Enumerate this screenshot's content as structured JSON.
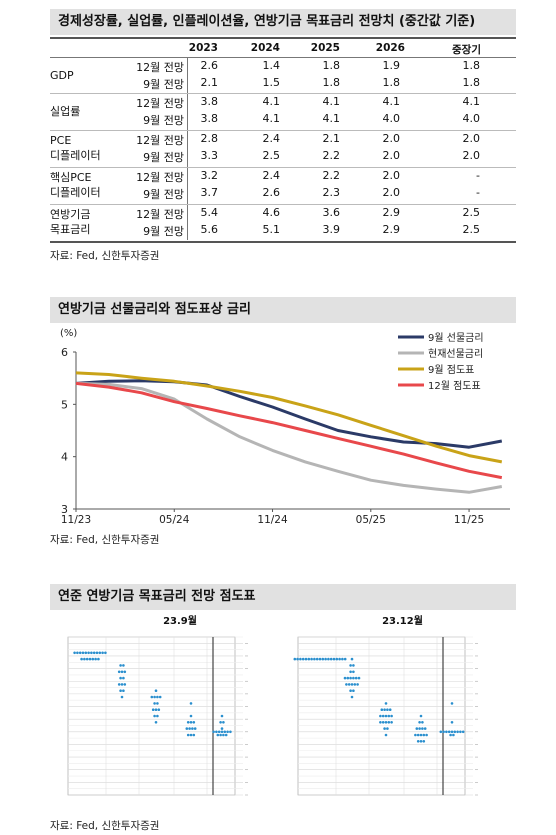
{
  "table_section": {
    "title": "경제성장률, 실업률, 인플레이션율, 연방기금 목표금리 전망치 (중간값 기준)",
    "headers": [
      "2023",
      "2024",
      "2025",
      "2026",
      "중장기"
    ],
    "groups": [
      {
        "label": [
          "GDP"
        ],
        "rows": [
          {
            "label": "12월 전망",
            "values": [
              "2.6",
              "1.4",
              "1.8",
              "1.9",
              "1.8"
            ]
          },
          {
            "label": "9월 전망",
            "values": [
              "2.1",
              "1.5",
              "1.8",
              "1.8",
              "1.8"
            ]
          }
        ]
      },
      {
        "label": [
          "실업률"
        ],
        "rows": [
          {
            "label": "12월 전망",
            "values": [
              "3.8",
              "4.1",
              "4.1",
              "4.1",
              "4.1"
            ]
          },
          {
            "label": "9월 전망",
            "values": [
              "3.8",
              "4.1",
              "4.1",
              "4.0",
              "4.0"
            ]
          }
        ]
      },
      {
        "label": [
          "PCE",
          "디플레이터"
        ],
        "rows": [
          {
            "label": "12월 전망",
            "values": [
              "2.8",
              "2.4",
              "2.1",
              "2.0",
              "2.0"
            ]
          },
          {
            "label": "9월 전망",
            "values": [
              "3.3",
              "2.5",
              "2.2",
              "2.0",
              "2.0"
            ]
          }
        ]
      },
      {
        "label": [
          "핵심PCE",
          "디플레이터"
        ],
        "rows": [
          {
            "label": "12월 전망",
            "values": [
              "3.2",
              "2.4",
              "2.2",
              "2.0",
              "-"
            ]
          },
          {
            "label": "9월 전망",
            "values": [
              "3.7",
              "2.6",
              "2.3",
              "2.0",
              "-"
            ]
          }
        ]
      },
      {
        "label": [
          "연방기금",
          "목표금리"
        ],
        "rows": [
          {
            "label": "12월 전망",
            "values": [
              "5.4",
              "4.6",
              "3.6",
              "2.9",
              "2.5"
            ]
          },
          {
            "label": "9월 전망",
            "values": [
              "5.6",
              "5.1",
              "3.9",
              "2.9",
              "2.5"
            ]
          }
        ]
      }
    ],
    "source": "자료: Fed, 신한투자증권"
  },
  "chart_section": {
    "title": "연방기금 선물금리와 점도표상 금리",
    "source": "자료: Fed, 신한투자증권"
  },
  "chart_data": {
    "type": "line",
    "ylabel": "(%)",
    "ylim": [
      3,
      6
    ],
    "yticks": [
      "3",
      "4",
      "5",
      "6"
    ],
    "xticks": [
      "11/23",
      "05/24",
      "11/24",
      "05/25",
      "11/25"
    ],
    "x": [
      0,
      2,
      4,
      6,
      8,
      10,
      12,
      14,
      16,
      18,
      20,
      22,
      24,
      26
    ],
    "legend_position": "top-right",
    "series": [
      {
        "name": "9월 선물금리",
        "color": "#2b3a67",
        "values": [
          5.4,
          5.44,
          5.45,
          5.43,
          5.37,
          5.15,
          4.95,
          4.72,
          4.5,
          4.38,
          4.28,
          4.25,
          4.18,
          4.3
        ]
      },
      {
        "name": "현재선물금리",
        "color": "#b5b5b5",
        "values": [
          5.4,
          5.38,
          5.3,
          5.1,
          4.72,
          4.38,
          4.12,
          3.9,
          3.72,
          3.55,
          3.45,
          3.38,
          3.32,
          3.43
        ]
      },
      {
        "name": "9월 점도표",
        "color": "#c9a318",
        "values": [
          5.6,
          5.57,
          5.5,
          5.44,
          5.35,
          5.25,
          5.13,
          4.97,
          4.8,
          4.6,
          4.4,
          4.2,
          4.02,
          3.9
        ]
      },
      {
        "name": "12월 점도표",
        "color": "#e8484b",
        "values": [
          5.4,
          5.33,
          5.22,
          5.05,
          4.92,
          4.78,
          4.65,
          4.5,
          4.35,
          4.2,
          4.05,
          3.88,
          3.72,
          3.6
        ]
      }
    ]
  },
  "dot_section": {
    "title": "연준 연방기금 목표금리 전망 점도표",
    "panels": [
      {
        "label": "23.9월",
        "dots": [
          [
            10,
            5.625,
            12
          ],
          [
            10,
            5.375,
            7
          ],
          [
            11,
            5.125,
            2
          ],
          [
            11,
            4.875,
            3
          ],
          [
            11,
            4.625,
            2
          ],
          [
            11,
            4.375,
            3
          ],
          [
            11,
            4.125,
            2
          ],
          [
            11,
            3.875,
            1
          ],
          [
            12,
            4.125,
            1
          ],
          [
            12,
            3.875,
            4
          ],
          [
            12,
            3.625,
            2
          ],
          [
            12,
            3.375,
            3
          ],
          [
            12,
            3.125,
            2
          ],
          [
            12,
            2.875,
            1
          ],
          [
            13,
            3.625,
            1
          ],
          [
            13,
            3.125,
            1
          ],
          [
            13,
            2.875,
            3
          ],
          [
            13,
            2.625,
            4
          ],
          [
            13,
            2.375,
            3
          ],
          [
            14,
            3.125,
            1
          ],
          [
            14,
            2.875,
            2
          ],
          [
            14,
            2.625,
            1
          ],
          [
            14,
            2.5,
            7
          ],
          [
            14,
            2.375,
            4
          ]
        ]
      },
      {
        "label": "23.12월",
        "dots": [
          [
            10,
            5.375,
            19
          ],
          [
            11,
            5.375,
            1
          ],
          [
            11,
            5.125,
            2
          ],
          [
            11,
            4.875,
            2
          ],
          [
            11,
            4.625,
            6
          ],
          [
            11,
            4.375,
            5
          ],
          [
            11,
            4.125,
            2
          ],
          [
            11,
            3.875,
            1
          ],
          [
            12,
            3.625,
            1
          ],
          [
            12,
            3.375,
            4
          ],
          [
            12,
            3.125,
            5
          ],
          [
            12,
            2.875,
            5
          ],
          [
            12,
            2.625,
            2
          ],
          [
            12,
            2.375,
            1
          ],
          [
            13,
            3.125,
            1
          ],
          [
            13,
            2.875,
            2
          ],
          [
            13,
            2.625,
            4
          ],
          [
            13,
            2.375,
            5
          ],
          [
            13,
            2.125,
            3
          ],
          [
            14,
            3.625,
            1
          ],
          [
            14,
            2.875,
            1
          ],
          [
            14,
            2.5,
            9
          ],
          [
            14,
            2.375,
            2
          ]
        ]
      }
    ],
    "source": "자료: Fed, 신한투자증권"
  }
}
